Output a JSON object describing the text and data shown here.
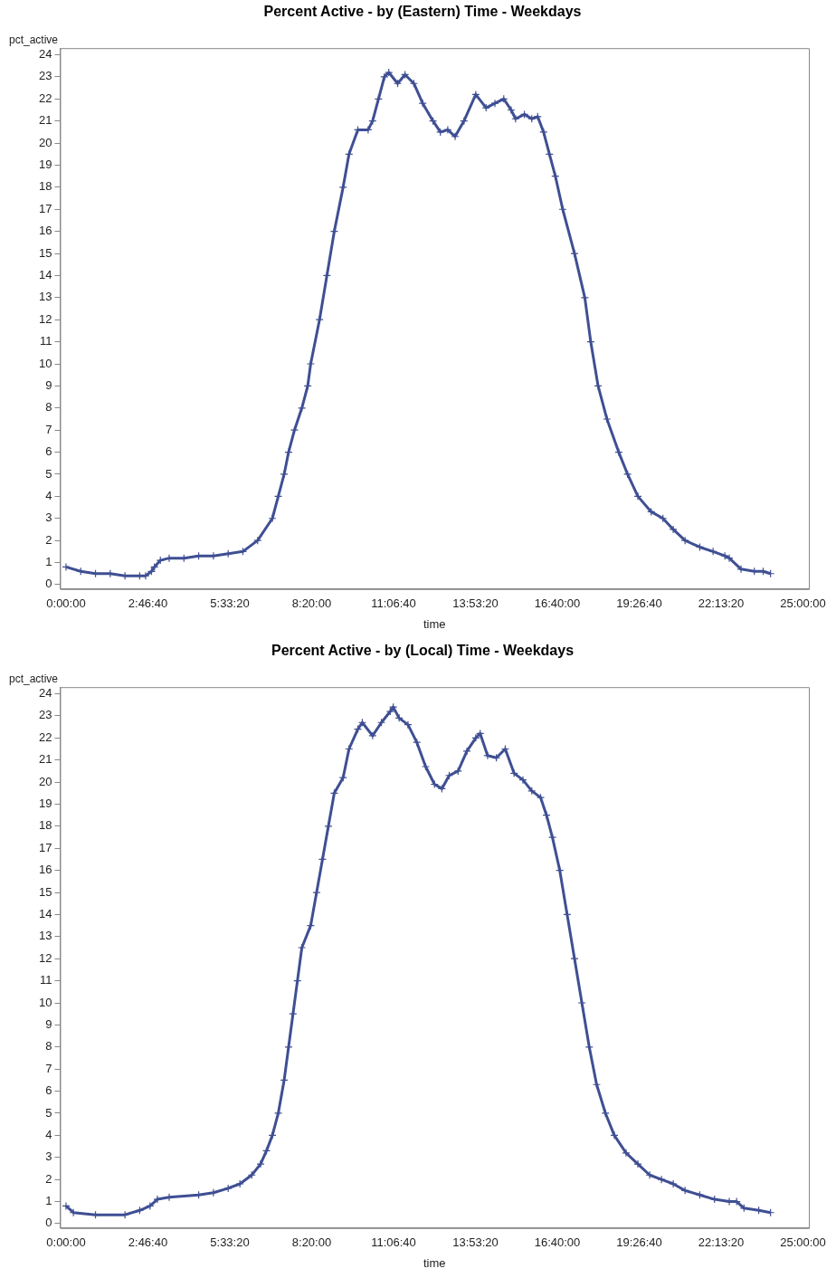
{
  "chart_data": [
    {
      "type": "line",
      "title": "Percent Active - by (Eastern) Time - Weekdays",
      "xlabel": "time",
      "ylabel": "pct_active",
      "marker": "cross",
      "grid": false,
      "legend": false,
      "xlim": [
        -0.2,
        25.2
      ],
      "ylim": [
        -0.2,
        24.3
      ],
      "xticks": [
        {
          "value": 0,
          "label": "0:00:00"
        },
        {
          "value": 2.7778,
          "label": "2:46:40"
        },
        {
          "value": 5.5556,
          "label": "5:33:20"
        },
        {
          "value": 8.3333,
          "label": "8:20:00"
        },
        {
          "value": 11.1111,
          "label": "11:06:40"
        },
        {
          "value": 13.8889,
          "label": "13:53:20"
        },
        {
          "value": 16.6667,
          "label": "16:40:00"
        },
        {
          "value": 19.4444,
          "label": "19:26:40"
        },
        {
          "value": 22.2222,
          "label": "22:13:20"
        },
        {
          "value": 25,
          "label": "25:00:00"
        }
      ],
      "yticks": [
        0,
        1,
        2,
        3,
        4,
        5,
        6,
        7,
        8,
        9,
        10,
        11,
        12,
        13,
        14,
        15,
        16,
        17,
        18,
        19,
        20,
        21,
        22,
        23,
        24
      ],
      "series": [
        {
          "color": "#3f4f93",
          "x": [
            0,
            0.5,
            1,
            1.5,
            2,
            2.5,
            2.7,
            2.9,
            3.0,
            3.2,
            3.5,
            4,
            4.5,
            5,
            5.5,
            6,
            6.5,
            7.0,
            7.2,
            7.4,
            7.55,
            7.75,
            8.0,
            8.2,
            8.3,
            8.6,
            8.85,
            9.1,
            9.4,
            9.6,
            9.9,
            10.25,
            10.4,
            10.6,
            10.8,
            10.95,
            11.25,
            11.5,
            11.8,
            12.1,
            12.45,
            12.7,
            12.95,
            13.2,
            13.5,
            13.9,
            14.25,
            14.55,
            14.85,
            15.1,
            15.25,
            15.55,
            15.8,
            16.0,
            16.2,
            16.4,
            16.6,
            16.85,
            17.25,
            17.6,
            17.8,
            18.05,
            18.35,
            18.75,
            19.05,
            19.4,
            19.85,
            20.25,
            20.6,
            21.0,
            21.5,
            21.95,
            22.35,
            22.5,
            22.9,
            23.35,
            23.65,
            23.9
          ],
          "values": [
            0.8,
            0.6,
            0.5,
            0.5,
            0.4,
            0.4,
            0.4,
            0.6,
            0.8,
            1.1,
            1.2,
            1.2,
            1.3,
            1.3,
            1.4,
            1.5,
            2.0,
            3.0,
            4.0,
            5.0,
            6.0,
            7.0,
            8.0,
            9.0,
            10.0,
            12.0,
            14.0,
            16.0,
            18.0,
            19.5,
            20.6,
            20.6,
            21.0,
            22.0,
            23.0,
            23.2,
            22.7,
            23.1,
            22.7,
            21.8,
            21.0,
            20.5,
            20.6,
            20.3,
            21.0,
            22.2,
            21.6,
            21.8,
            22.0,
            21.5,
            21.1,
            21.3,
            21.1,
            21.2,
            20.5,
            19.5,
            18.5,
            17.0,
            15.0,
            13.0,
            11.0,
            9.0,
            7.5,
            6.0,
            5.0,
            4.0,
            3.3,
            3.0,
            2.5,
            2.0,
            1.7,
            1.5,
            1.3,
            1.2,
            0.7,
            0.6,
            0.6,
            0.5
          ]
        }
      ]
    },
    {
      "type": "line",
      "title": "Percent Active - by (Local) Time - Weekdays",
      "xlabel": "time",
      "ylabel": "pct_active",
      "marker": "cross",
      "grid": false,
      "legend": false,
      "xlim": [
        -0.2,
        25.2
      ],
      "ylim": [
        -0.2,
        24.3
      ],
      "xticks": [
        {
          "value": 0,
          "label": "0:00:00"
        },
        {
          "value": 2.7778,
          "label": "2:46:40"
        },
        {
          "value": 5.5556,
          "label": "5:33:20"
        },
        {
          "value": 8.3333,
          "label": "8:20:00"
        },
        {
          "value": 11.1111,
          "label": "11:06:40"
        },
        {
          "value": 13.8889,
          "label": "13:53:20"
        },
        {
          "value": 16.6667,
          "label": "16:40:00"
        },
        {
          "value": 19.4444,
          "label": "19:26:40"
        },
        {
          "value": 22.2222,
          "label": "22:13:20"
        },
        {
          "value": 25,
          "label": "25:00:00"
        }
      ],
      "yticks": [
        0,
        1,
        2,
        3,
        4,
        5,
        6,
        7,
        8,
        9,
        10,
        11,
        12,
        13,
        14,
        15,
        16,
        17,
        18,
        19,
        20,
        21,
        22,
        23,
        24
      ],
      "series": [
        {
          "color": "#3f4f93",
          "x": [
            0,
            0.25,
            1.0,
            2.0,
            2.5,
            2.85,
            3.1,
            3.5,
            4.5,
            5.0,
            5.5,
            5.9,
            6.3,
            6.6,
            6.8,
            7.0,
            7.2,
            7.4,
            7.55,
            7.7,
            7.85,
            8.0,
            8.3,
            8.5,
            8.7,
            8.9,
            9.1,
            9.4,
            9.6,
            9.9,
            10.05,
            10.4,
            10.7,
            11.0,
            11.1,
            11.3,
            11.6,
            11.9,
            12.2,
            12.5,
            12.75,
            13.0,
            13.3,
            13.6,
            13.9,
            14.05,
            14.3,
            14.6,
            14.9,
            15.2,
            15.5,
            15.8,
            16.1,
            16.3,
            16.5,
            16.75,
            17.0,
            17.25,
            17.5,
            17.75,
            18.0,
            18.3,
            18.6,
            19.0,
            19.4,
            19.8,
            20.2,
            20.6,
            21.0,
            21.5,
            22.0,
            22.5,
            22.75,
            23.0,
            23.5,
            23.9
          ],
          "values": [
            0.8,
            0.5,
            0.4,
            0.4,
            0.6,
            0.8,
            1.1,
            1.2,
            1.3,
            1.4,
            1.6,
            1.8,
            2.2,
            2.7,
            3.3,
            4.0,
            5.0,
            6.5,
            8.0,
            9.5,
            11.0,
            12.5,
            13.5,
            15.0,
            16.5,
            18.0,
            19.5,
            20.2,
            21.5,
            22.4,
            22.7,
            22.1,
            22.7,
            23.2,
            23.4,
            22.9,
            22.6,
            21.8,
            20.7,
            19.9,
            19.7,
            20.3,
            20.5,
            21.4,
            22.0,
            22.2,
            21.2,
            21.1,
            21.5,
            20.4,
            20.1,
            19.6,
            19.3,
            18.5,
            17.5,
            16.0,
            14.0,
            12.0,
            10.0,
            8.0,
            6.3,
            5.0,
            4.0,
            3.2,
            2.7,
            2.2,
            2.0,
            1.8,
            1.5,
            1.3,
            1.1,
            1.0,
            1.0,
            0.7,
            0.6,
            0.5
          ]
        }
      ]
    }
  ]
}
